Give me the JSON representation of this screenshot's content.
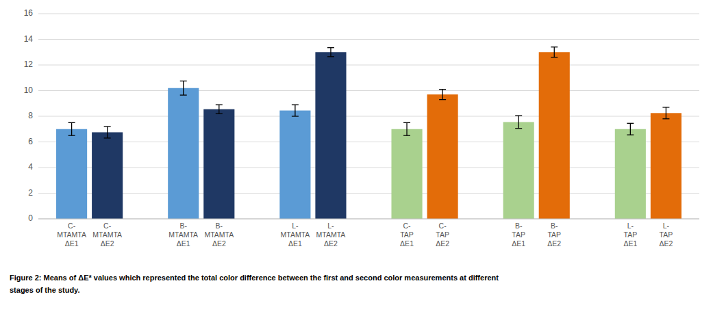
{
  "chart_data": {
    "type": "bar",
    "categories": [
      "C-\nMTAMTA\nΔE1",
      "C-\nMTAMTA\nΔE2",
      "B-\nMTAMTA\nΔE1",
      "B-\nMTAMTA\nΔE2",
      "L-\nMTAMTA\nΔE1",
      "L-\nMTAMTA\nΔE2",
      "C-\nTAP\nΔE1",
      "C-\nTAP\nΔE2",
      "B-\nTAP\nΔE1",
      "B-\nTAP\nΔE2",
      "L-\nTAP\nΔE1",
      "L-\nTAP\nΔE2"
    ],
    "values": [
      7.0,
      6.75,
      10.2,
      8.55,
      8.45,
      13.0,
      7.0,
      9.7,
      7.55,
      13.0,
      7.0,
      8.25
    ],
    "errors": [
      0.5,
      0.45,
      0.55,
      0.35,
      0.45,
      0.35,
      0.5,
      0.4,
      0.5,
      0.4,
      0.45,
      0.45
    ],
    "colors": [
      "#5B9BD5",
      "#1F3864",
      "#5B9BD5",
      "#1F3864",
      "#5B9BD5",
      "#1F3864",
      "#A9D18E",
      "#E36C09",
      "#A9D18E",
      "#E36C09",
      "#A9D18E",
      "#E36C09"
    ],
    "ylim": [
      0,
      16
    ],
    "yticks": [
      0,
      2,
      4,
      6,
      8,
      10,
      12,
      14,
      16
    ],
    "grid": true,
    "annotations": [
      "Figure 2: Means of ΔE* values which represented the total color difference between the first and second color measurements at different",
      "stages of the study."
    ]
  }
}
